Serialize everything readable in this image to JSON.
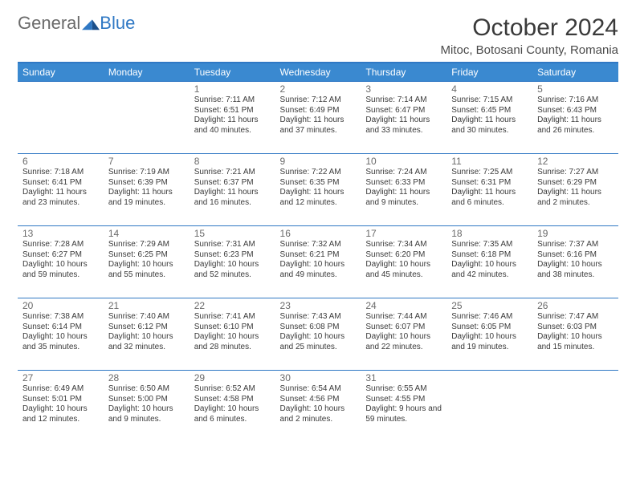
{
  "brand": {
    "general": "General",
    "blue": "Blue"
  },
  "title": "October 2024",
  "location": "Mitoc, Botosani County, Romania",
  "colors": {
    "header_bg": "#3a89d0",
    "divider": "#2f78c4",
    "text": "#3a3a3a",
    "brand_gray": "#6a6a6a",
    "brand_blue": "#2f78c4"
  },
  "day_headers": [
    "Sunday",
    "Monday",
    "Tuesday",
    "Wednesday",
    "Thursday",
    "Friday",
    "Saturday"
  ],
  "weeks": [
    [
      {
        "n": "",
        "sr": "",
        "ss": "",
        "dl": "",
        "empty": true
      },
      {
        "n": "",
        "sr": "",
        "ss": "",
        "dl": "",
        "empty": true
      },
      {
        "n": "1",
        "sr": "Sunrise: 7:11 AM",
        "ss": "Sunset: 6:51 PM",
        "dl": "Daylight: 11 hours and 40 minutes."
      },
      {
        "n": "2",
        "sr": "Sunrise: 7:12 AM",
        "ss": "Sunset: 6:49 PM",
        "dl": "Daylight: 11 hours and 37 minutes."
      },
      {
        "n": "3",
        "sr": "Sunrise: 7:14 AM",
        "ss": "Sunset: 6:47 PM",
        "dl": "Daylight: 11 hours and 33 minutes."
      },
      {
        "n": "4",
        "sr": "Sunrise: 7:15 AM",
        "ss": "Sunset: 6:45 PM",
        "dl": "Daylight: 11 hours and 30 minutes."
      },
      {
        "n": "5",
        "sr": "Sunrise: 7:16 AM",
        "ss": "Sunset: 6:43 PM",
        "dl": "Daylight: 11 hours and 26 minutes."
      }
    ],
    [
      {
        "n": "6",
        "sr": "Sunrise: 7:18 AM",
        "ss": "Sunset: 6:41 PM",
        "dl": "Daylight: 11 hours and 23 minutes."
      },
      {
        "n": "7",
        "sr": "Sunrise: 7:19 AM",
        "ss": "Sunset: 6:39 PM",
        "dl": "Daylight: 11 hours and 19 minutes."
      },
      {
        "n": "8",
        "sr": "Sunrise: 7:21 AM",
        "ss": "Sunset: 6:37 PM",
        "dl": "Daylight: 11 hours and 16 minutes."
      },
      {
        "n": "9",
        "sr": "Sunrise: 7:22 AM",
        "ss": "Sunset: 6:35 PM",
        "dl": "Daylight: 11 hours and 12 minutes."
      },
      {
        "n": "10",
        "sr": "Sunrise: 7:24 AM",
        "ss": "Sunset: 6:33 PM",
        "dl": "Daylight: 11 hours and 9 minutes."
      },
      {
        "n": "11",
        "sr": "Sunrise: 7:25 AM",
        "ss": "Sunset: 6:31 PM",
        "dl": "Daylight: 11 hours and 6 minutes."
      },
      {
        "n": "12",
        "sr": "Sunrise: 7:27 AM",
        "ss": "Sunset: 6:29 PM",
        "dl": "Daylight: 11 hours and 2 minutes."
      }
    ],
    [
      {
        "n": "13",
        "sr": "Sunrise: 7:28 AM",
        "ss": "Sunset: 6:27 PM",
        "dl": "Daylight: 10 hours and 59 minutes."
      },
      {
        "n": "14",
        "sr": "Sunrise: 7:29 AM",
        "ss": "Sunset: 6:25 PM",
        "dl": "Daylight: 10 hours and 55 minutes."
      },
      {
        "n": "15",
        "sr": "Sunrise: 7:31 AM",
        "ss": "Sunset: 6:23 PM",
        "dl": "Daylight: 10 hours and 52 minutes."
      },
      {
        "n": "16",
        "sr": "Sunrise: 7:32 AM",
        "ss": "Sunset: 6:21 PM",
        "dl": "Daylight: 10 hours and 49 minutes."
      },
      {
        "n": "17",
        "sr": "Sunrise: 7:34 AM",
        "ss": "Sunset: 6:20 PM",
        "dl": "Daylight: 10 hours and 45 minutes."
      },
      {
        "n": "18",
        "sr": "Sunrise: 7:35 AM",
        "ss": "Sunset: 6:18 PM",
        "dl": "Daylight: 10 hours and 42 minutes."
      },
      {
        "n": "19",
        "sr": "Sunrise: 7:37 AM",
        "ss": "Sunset: 6:16 PM",
        "dl": "Daylight: 10 hours and 38 minutes."
      }
    ],
    [
      {
        "n": "20",
        "sr": "Sunrise: 7:38 AM",
        "ss": "Sunset: 6:14 PM",
        "dl": "Daylight: 10 hours and 35 minutes."
      },
      {
        "n": "21",
        "sr": "Sunrise: 7:40 AM",
        "ss": "Sunset: 6:12 PM",
        "dl": "Daylight: 10 hours and 32 minutes."
      },
      {
        "n": "22",
        "sr": "Sunrise: 7:41 AM",
        "ss": "Sunset: 6:10 PM",
        "dl": "Daylight: 10 hours and 28 minutes."
      },
      {
        "n": "23",
        "sr": "Sunrise: 7:43 AM",
        "ss": "Sunset: 6:08 PM",
        "dl": "Daylight: 10 hours and 25 minutes."
      },
      {
        "n": "24",
        "sr": "Sunrise: 7:44 AM",
        "ss": "Sunset: 6:07 PM",
        "dl": "Daylight: 10 hours and 22 minutes."
      },
      {
        "n": "25",
        "sr": "Sunrise: 7:46 AM",
        "ss": "Sunset: 6:05 PM",
        "dl": "Daylight: 10 hours and 19 minutes."
      },
      {
        "n": "26",
        "sr": "Sunrise: 7:47 AM",
        "ss": "Sunset: 6:03 PM",
        "dl": "Daylight: 10 hours and 15 minutes."
      }
    ],
    [
      {
        "n": "27",
        "sr": "Sunrise: 6:49 AM",
        "ss": "Sunset: 5:01 PM",
        "dl": "Daylight: 10 hours and 12 minutes."
      },
      {
        "n": "28",
        "sr": "Sunrise: 6:50 AM",
        "ss": "Sunset: 5:00 PM",
        "dl": "Daylight: 10 hours and 9 minutes."
      },
      {
        "n": "29",
        "sr": "Sunrise: 6:52 AM",
        "ss": "Sunset: 4:58 PM",
        "dl": "Daylight: 10 hours and 6 minutes."
      },
      {
        "n": "30",
        "sr": "Sunrise: 6:54 AM",
        "ss": "Sunset: 4:56 PM",
        "dl": "Daylight: 10 hours and 2 minutes."
      },
      {
        "n": "31",
        "sr": "Sunrise: 6:55 AM",
        "ss": "Sunset: 4:55 PM",
        "dl": "Daylight: 9 hours and 59 minutes."
      },
      {
        "n": "",
        "sr": "",
        "ss": "",
        "dl": "",
        "empty": true
      },
      {
        "n": "",
        "sr": "",
        "ss": "",
        "dl": "",
        "empty": true
      }
    ]
  ]
}
